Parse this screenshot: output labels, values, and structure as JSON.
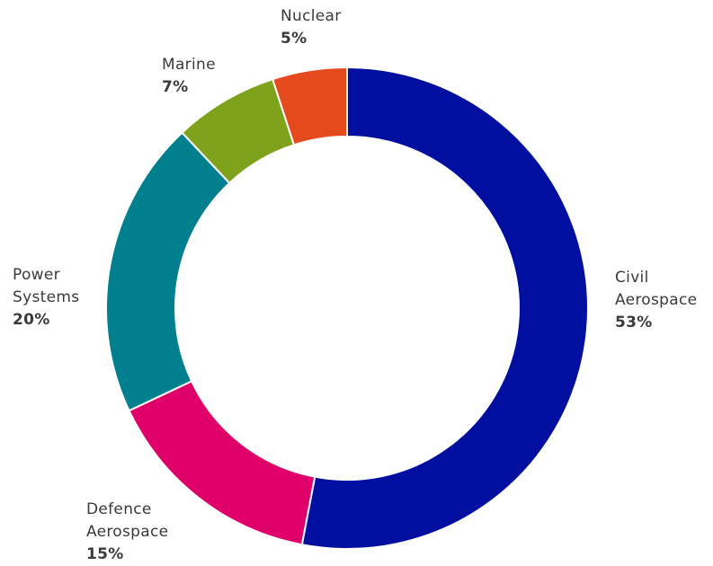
{
  "chart_data": {
    "type": "pie",
    "donut": true,
    "title": "",
    "legend": "none",
    "slices": [
      {
        "label_lines": [
          "Civil",
          "Aerospace"
        ],
        "value": 53,
        "value_label": "53%",
        "color": "#000f9f"
      },
      {
        "label_lines": [
          "Defence",
          "Aerospace"
        ],
        "value": 15,
        "value_label": "15%",
        "color": "#e0006a"
      },
      {
        "label_lines": [
          "Power",
          "Systems"
        ],
        "value": 20,
        "value_label": "20%",
        "color": "#00808e"
      },
      {
        "label_lines": [
          "Marine"
        ],
        "value": 7,
        "value_label": "7%",
        "color": "#7fa21c"
      },
      {
        "label_lines": [
          "Nuclear"
        ],
        "value": 5,
        "value_label": "5%",
        "color": "#e44a1c"
      }
    ]
  }
}
